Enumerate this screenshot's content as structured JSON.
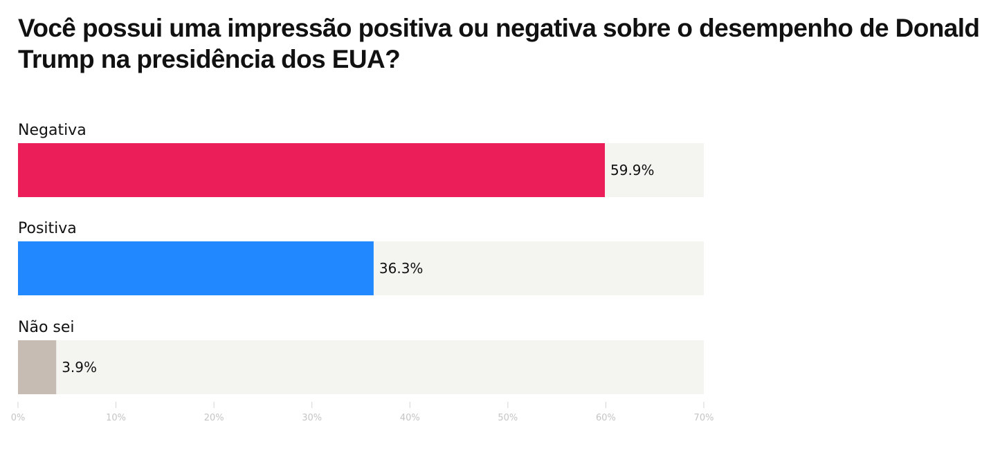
{
  "title": "Você possui uma impressão positiva ou negativa sobre o desempenho de Donald Trump na presidência dos EUA?",
  "chart_data": {
    "type": "bar",
    "orientation": "horizontal",
    "title": "Você possui uma impressão positiva ou negativa sobre o desempenho de Donald Trump na presidência dos EUA?",
    "categories": [
      "Negativa",
      "Positiva",
      "Não sei"
    ],
    "values": [
      59.9,
      36.3,
      3.9
    ],
    "value_labels": [
      "59.9%",
      "36.3%",
      "3.9%"
    ],
    "colors": [
      "#ec1e5a",
      "#2288ff",
      "#c6bcb3"
    ],
    "track_color": "#f4f4f1",
    "xlim": [
      0,
      70
    ],
    "xticks": [
      0,
      10,
      20,
      30,
      40,
      50,
      60,
      70
    ],
    "xtick_labels": [
      "0%",
      "10%",
      "20%",
      "30%",
      "40%",
      "50%",
      "60%",
      "70%"
    ],
    "xlabel": "",
    "ylabel": "",
    "grid": false,
    "legend": "none"
  }
}
